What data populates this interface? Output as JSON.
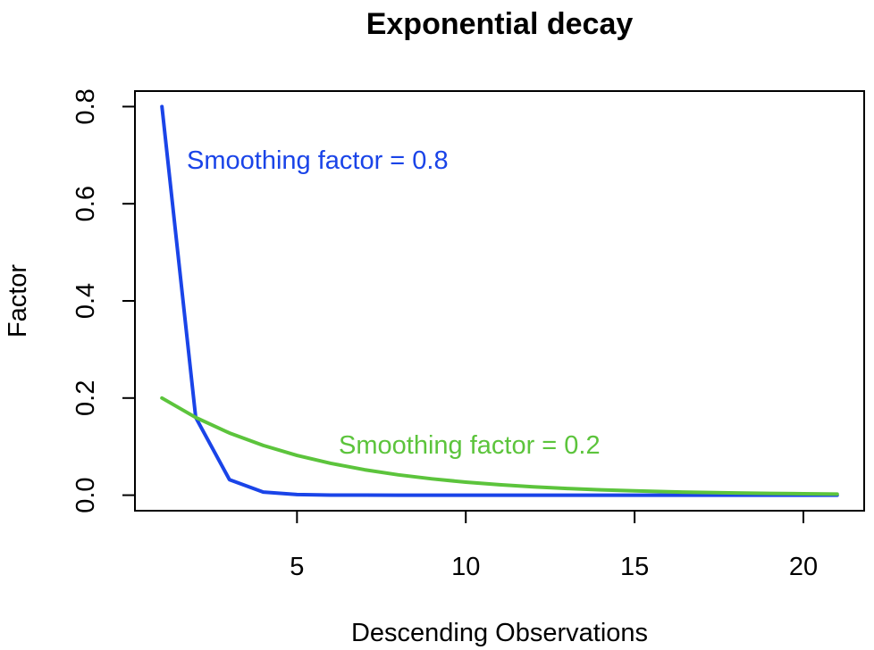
{
  "chart_data": {
    "type": "line",
    "title": "Exponential decay",
    "xlabel": "Descending Observations",
    "ylabel": "Factor",
    "xlim": [
      0.2,
      21.8
    ],
    "ylim": [
      -0.032,
      0.832
    ],
    "xticks": [
      5,
      10,
      15,
      20
    ],
    "xtick_labels": [
      "5",
      "10",
      "15",
      "20"
    ],
    "yticks": [
      0.0,
      0.2,
      0.4,
      0.6,
      0.8
    ],
    "ytick_labels": [
      "0.0",
      "0.2",
      "0.4",
      "0.6",
      "0.8"
    ],
    "grid": false,
    "legend": "none",
    "x": [
      1,
      2,
      3,
      4,
      5,
      6,
      7,
      8,
      9,
      10,
      11,
      12,
      13,
      14,
      15,
      16,
      17,
      18,
      19,
      20,
      21
    ],
    "series": [
      {
        "color": "#1a44e8",
        "values": [
          0.8,
          0.16,
          0.032,
          0.0064,
          0.00128,
          0.000256,
          5.12e-05,
          1e-05,
          2e-06,
          4e-07,
          1e-07,
          0,
          0,
          0,
          0,
          0,
          0,
          0,
          0,
          0,
          0
        ]
      },
      {
        "color": "#5cc43c",
        "values": [
          0.2,
          0.16,
          0.128,
          0.1024,
          0.0819,
          0.0655,
          0.0524,
          0.0419,
          0.0336,
          0.0268,
          0.0215,
          0.0172,
          0.0137,
          0.011,
          0.0088,
          0.007,
          0.0056,
          0.0045,
          0.0036,
          0.0029,
          0.0023
        ]
      }
    ],
    "annotations": [
      {
        "text": "Smoothing factor = 0.8",
        "color": "#1a44e8"
      },
      {
        "text": "Smoothing factor = 0.2",
        "color": "#5cc43c"
      }
    ]
  }
}
